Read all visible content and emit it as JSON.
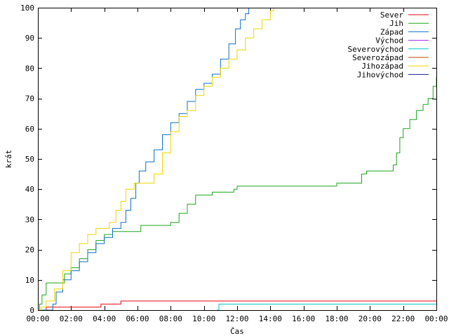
{
  "chart_data": {
    "type": "line",
    "title": "",
    "xlabel": "Čas",
    "ylabel": "krát",
    "xlim": [
      0,
      24
    ],
    "ylim": [
      0,
      100
    ],
    "legend_position": "top-right",
    "grid": false,
    "x_ticks": [
      "00:00",
      "02:00",
      "04:00",
      "06:00",
      "08:00",
      "10:00",
      "12:00",
      "14:00",
      "16:00",
      "18:00",
      "20:00",
      "22:00",
      "00:00"
    ],
    "y_ticks": [
      0,
      10,
      20,
      30,
      40,
      50,
      60,
      70,
      80,
      90,
      100
    ],
    "series": [
      {
        "name": "Sever",
        "color": "#e8000b",
        "points": [
          [
            0,
            0
          ],
          [
            0.3,
            0
          ],
          [
            0.5,
            1
          ],
          [
            3.6,
            1
          ],
          [
            3.8,
            2
          ],
          [
            4.9,
            2
          ],
          [
            5.0,
            3
          ],
          [
            24,
            3
          ]
        ]
      },
      {
        "name": "Jih",
        "color": "#1ca51c",
        "points": [
          [
            0,
            0
          ],
          [
            0.1,
            2
          ],
          [
            0.25,
            5
          ],
          [
            0.5,
            9
          ],
          [
            1.3,
            9
          ],
          [
            1.6,
            12
          ],
          [
            2.0,
            14
          ],
          [
            2.5,
            17
          ],
          [
            3.0,
            20
          ],
          [
            3.5,
            23
          ],
          [
            4.0,
            25
          ],
          [
            4.5,
            26
          ],
          [
            6.0,
            26
          ],
          [
            6.2,
            28
          ],
          [
            7.5,
            28
          ],
          [
            8.0,
            29
          ],
          [
            8.5,
            32
          ],
          [
            9.0,
            35
          ],
          [
            9.5,
            38
          ],
          [
            10.5,
            39
          ],
          [
            11.8,
            40
          ],
          [
            12.0,
            41
          ],
          [
            17.8,
            41
          ],
          [
            18.0,
            42
          ],
          [
            19.2,
            42
          ],
          [
            19.5,
            45
          ],
          [
            19.8,
            46
          ],
          [
            21.2,
            46
          ],
          [
            21.4,
            48
          ],
          [
            21.6,
            52
          ],
          [
            21.8,
            57
          ],
          [
            22.0,
            60
          ],
          [
            22.4,
            63
          ],
          [
            22.8,
            66
          ],
          [
            23.2,
            68
          ],
          [
            23.5,
            70
          ],
          [
            23.8,
            74
          ],
          [
            24.0,
            77
          ]
        ]
      },
      {
        "name": "Západ",
        "color": "#0a6fcf",
        "points": [
          [
            0,
            0
          ],
          [
            0.7,
            0
          ],
          [
            0.9,
            2
          ],
          [
            1.1,
            6
          ],
          [
            1.5,
            10
          ],
          [
            2.0,
            13
          ],
          [
            2.5,
            16
          ],
          [
            3.0,
            19
          ],
          [
            3.5,
            22
          ],
          [
            4.0,
            24
          ],
          [
            4.5,
            27
          ],
          [
            5.0,
            29
          ],
          [
            5.3,
            33
          ],
          [
            5.6,
            37
          ],
          [
            5.9,
            42
          ],
          [
            6.1,
            46
          ],
          [
            6.5,
            49
          ],
          [
            7.0,
            53
          ],
          [
            7.5,
            58
          ],
          [
            8.0,
            62
          ],
          [
            8.5,
            65
          ],
          [
            9.0,
            69
          ],
          [
            9.5,
            73
          ],
          [
            10.0,
            75
          ],
          [
            10.5,
            78
          ],
          [
            11.0,
            83
          ],
          [
            11.5,
            88
          ],
          [
            11.9,
            93
          ],
          [
            12.2,
            96
          ],
          [
            12.5,
            98
          ],
          [
            12.7,
            100
          ]
        ]
      },
      {
        "name": "Východ",
        "color": "#a020f0",
        "points": []
      },
      {
        "name": "Severovýchod",
        "color": "#00c8c8",
        "points": [
          [
            10.8,
            0
          ],
          [
            10.9,
            2
          ],
          [
            24,
            2
          ]
        ]
      },
      {
        "name": "Severozápad",
        "color": "#c04000",
        "points": []
      },
      {
        "name": "Jihozápad",
        "color": "#e8d800",
        "points": [
          [
            0,
            0
          ],
          [
            0.2,
            1
          ],
          [
            0.5,
            3
          ],
          [
            1.0,
            7
          ],
          [
            1.5,
            13
          ],
          [
            2.0,
            19
          ],
          [
            2.5,
            22
          ],
          [
            3.0,
            25
          ],
          [
            3.5,
            27
          ],
          [
            4.0,
            27
          ],
          [
            4.3,
            29
          ],
          [
            4.7,
            33
          ],
          [
            5.0,
            36
          ],
          [
            5.3,
            40
          ],
          [
            5.8,
            42
          ],
          [
            6.5,
            42
          ],
          [
            7.0,
            45
          ],
          [
            7.5,
            52
          ],
          [
            8.0,
            59
          ],
          [
            8.5,
            64
          ],
          [
            9.0,
            66
          ],
          [
            9.5,
            71
          ],
          [
            10.0,
            74
          ],
          [
            10.5,
            77
          ],
          [
            11.0,
            80
          ],
          [
            11.5,
            83
          ],
          [
            12.0,
            86
          ],
          [
            12.5,
            90
          ],
          [
            13.0,
            93
          ],
          [
            13.5,
            96
          ],
          [
            14.0,
            99
          ],
          [
            14.2,
            100
          ]
        ]
      },
      {
        "name": "Jihovýchod",
        "color": "#1c1c9c",
        "points": []
      }
    ]
  }
}
